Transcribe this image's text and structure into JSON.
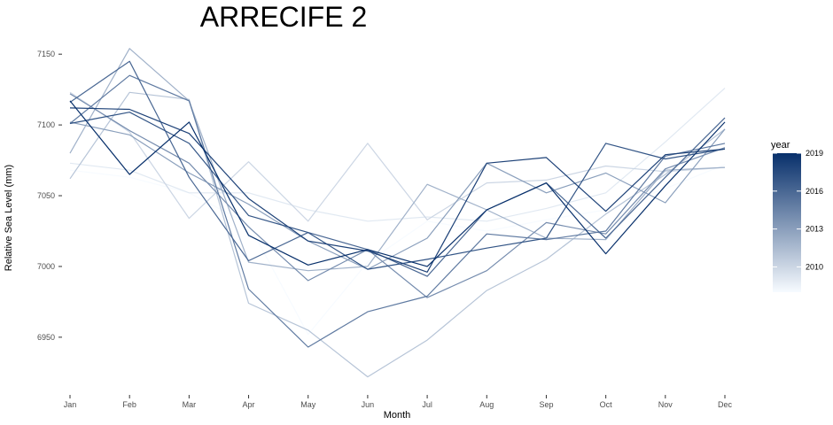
{
  "chart_data": {
    "type": "line",
    "title": "ARRECIFE 2",
    "xlabel": "Month",
    "ylabel": "Relative Sea Level (mm)",
    "categories": [
      "Jan",
      "Feb",
      "Mar",
      "Apr",
      "May",
      "Jun",
      "Jul",
      "Aug",
      "Sep",
      "Oct",
      "Nov",
      "Dec"
    ],
    "ylim": [
      6913,
      7162
    ],
    "yticks": [
      6950,
      7000,
      7050,
      7100,
      7150
    ],
    "grid": false,
    "color_scale": {
      "variable": "year",
      "low_color": "#f7fbff",
      "high_color": "#08306b",
      "domain": [
        2008,
        2019
      ],
      "ticks": [
        2010,
        2013,
        2016,
        2019
      ]
    },
    "legend": {
      "title": "year",
      "position": "right"
    },
    "series": [
      {
        "year": 2008,
        "values": [
          7068,
          7063,
          7052,
          7030,
          6952,
          7003,
          7032,
          7025,
          7033,
          7040,
          7055,
          7072
        ]
      },
      {
        "year": 2009,
        "values": [
          7073,
          7068,
          7052,
          7052,
          7040,
          7032,
          7035,
          7032,
          7041,
          7052,
          7088,
          7126
        ]
      },
      {
        "year": 2010,
        "values": [
          7123,
          7095,
          7034,
          7074,
          7032,
          7087,
          7033,
          7059,
          7061,
          7071,
          7067,
          7070
        ]
      },
      {
        "year": 2011,
        "values": [
          7062,
          7123,
          7118,
          6974,
          6955,
          6922,
          6948,
          6983,
          7005,
          7037,
          7065,
          7097
        ]
      },
      {
        "year": 2012,
        "values": [
          7080,
          7154,
          7117,
          7003,
          6997,
          7000,
          7058,
          7040,
          7020,
          7019,
          7068,
          7070
        ]
      },
      {
        "year": 2013,
        "values": [
          7102,
          7093,
          7066,
          7044,
          7018,
          6998,
          7020,
          7073,
          7052,
          7066,
          7045,
          7097
        ]
      },
      {
        "year": 2014,
        "values": [
          7122,
          7096,
          7073,
          7028,
          6990,
          7012,
          6978,
          6997,
          7031,
          7023,
          7069,
          7084
        ]
      },
      {
        "year": 2015,
        "values": [
          7101,
          7135,
          7117,
          6984,
          6943,
          6968,
          6979,
          7023,
          7019,
          7025,
          7078,
          7087
        ]
      },
      {
        "year": 2016,
        "values": [
          7116,
          7145,
          7063,
          7004,
          7024,
          7012,
          6993,
          7040,
          7059,
          7020,
          7063,
          7105
        ]
      },
      {
        "year": 2017,
        "values": [
          7101,
          7109,
          7087,
          7036,
          7024,
          6998,
          7005,
          7013,
          7020,
          7087,
          7076,
          7083
        ]
      },
      {
        "year": 2018,
        "values": [
          7112,
          7111,
          7094,
          7048,
          7018,
          7011,
          6996,
          7073,
          7077,
          7039,
          7079,
          7083
        ]
      },
      {
        "year": 2019,
        "values": [
          7117,
          7065,
          7102,
          7022,
          7001,
          7012,
          7000,
          7040,
          7059,
          7009,
          7057,
          7102
        ]
      }
    ]
  }
}
